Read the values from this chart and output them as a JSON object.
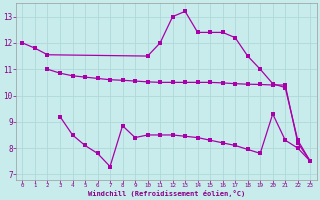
{
  "background_color": "#c8ecec",
  "grid_color": "#b0d8d8",
  "line_color": "#aa00aa",
  "marker_color": "#aa00aa",
  "xlabel": "Windchill (Refroidissement éolien,°C)",
  "xlabel_color": "#880088",
  "xtick_color": "#880088",
  "ytick_color": "#880088",
  "xlim": [
    -0.5,
    23.5
  ],
  "ylim": [
    6.8,
    13.5
  ],
  "yticks": [
    7,
    8,
    9,
    10,
    11,
    12,
    13
  ],
  "xticks": [
    0,
    1,
    2,
    3,
    4,
    5,
    6,
    7,
    8,
    9,
    10,
    11,
    12,
    13,
    14,
    15,
    16,
    17,
    18,
    19,
    20,
    21,
    22,
    23
  ],
  "series1_x": [
    0,
    1,
    2,
    10,
    11,
    12,
    13,
    14,
    15,
    16,
    17,
    18,
    19,
    20,
    21,
    22,
    23
  ],
  "series1_y": [
    12.0,
    11.8,
    11.55,
    11.5,
    12.0,
    13.0,
    13.2,
    12.4,
    12.4,
    12.4,
    12.2,
    11.5,
    11.0,
    10.45,
    10.3,
    8.3,
    7.5
  ],
  "series2_x": [
    2,
    3,
    4,
    5,
    6,
    7,
    8,
    9,
    10,
    11,
    12,
    13,
    14,
    15,
    16,
    17,
    18,
    19,
    20,
    21,
    22,
    23
  ],
  "series2_y": [
    11.0,
    10.85,
    10.75,
    10.7,
    10.65,
    10.6,
    10.58,
    10.55,
    10.52,
    10.5,
    10.5,
    10.5,
    10.5,
    10.5,
    10.48,
    10.45,
    10.43,
    10.42,
    10.4,
    10.4,
    8.2,
    7.5
  ],
  "series3_x": [
    3,
    4,
    5,
    6,
    7,
    8,
    9,
    10,
    11,
    12,
    13,
    14,
    15,
    16,
    17,
    18,
    19,
    20,
    21,
    22,
    23
  ],
  "series3_y": [
    9.2,
    8.5,
    8.1,
    7.8,
    7.3,
    8.85,
    8.4,
    8.5,
    8.5,
    8.5,
    8.45,
    8.4,
    8.3,
    8.2,
    8.1,
    7.95,
    7.8,
    9.3,
    8.3,
    8.0,
    7.5
  ]
}
